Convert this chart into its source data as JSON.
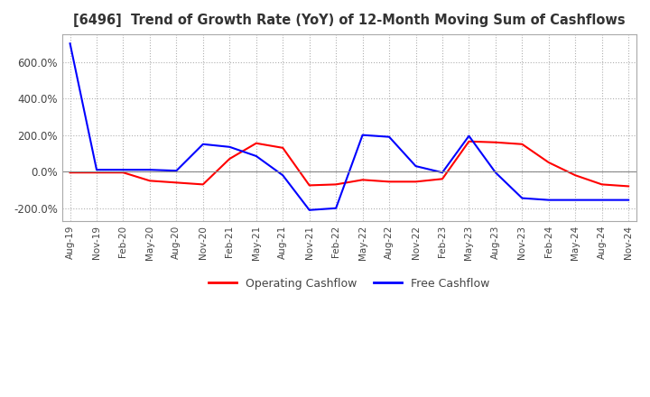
{
  "title": "[6496]  Trend of Growth Rate (YoY) of 12-Month Moving Sum of Cashflows",
  "legend_labels": [
    "Operating Cashflow",
    "Free Cashflow"
  ],
  "line_colors": [
    "#ff0000",
    "#0000ff"
  ],
  "ylim": [
    -270,
    750
  ],
  "yticks": [
    -200,
    0,
    200,
    400,
    600
  ],
  "ytick_labels": [
    "-200.0%",
    "0.0%",
    "200.0%",
    "400.0%",
    "600.0%"
  ],
  "background_color": "#ffffff",
  "grid_color": "#b0b0b0",
  "x_labels": [
    "Aug-19",
    "Nov-19",
    "Feb-20",
    "May-20",
    "Aug-20",
    "Nov-20",
    "Feb-21",
    "May-21",
    "Aug-21",
    "Nov-21",
    "Feb-22",
    "May-22",
    "Aug-22",
    "Nov-22",
    "Feb-23",
    "May-23",
    "Aug-23",
    "Nov-23",
    "Feb-24",
    "May-24",
    "Aug-24",
    "Nov-24"
  ],
  "operating_cashflow": [
    -5,
    -5,
    -5,
    -50,
    -60,
    -70,
    70,
    155,
    130,
    -75,
    -70,
    -45,
    -55,
    -55,
    -40,
    165,
    160,
    150,
    50,
    -20,
    -70,
    -80
  ],
  "free_cashflow": [
    700,
    10,
    10,
    10,
    5,
    150,
    135,
    85,
    -20,
    -210,
    -200,
    200,
    190,
    30,
    -5,
    195,
    -5,
    -145,
    -155,
    -155,
    -155,
    -155
  ]
}
